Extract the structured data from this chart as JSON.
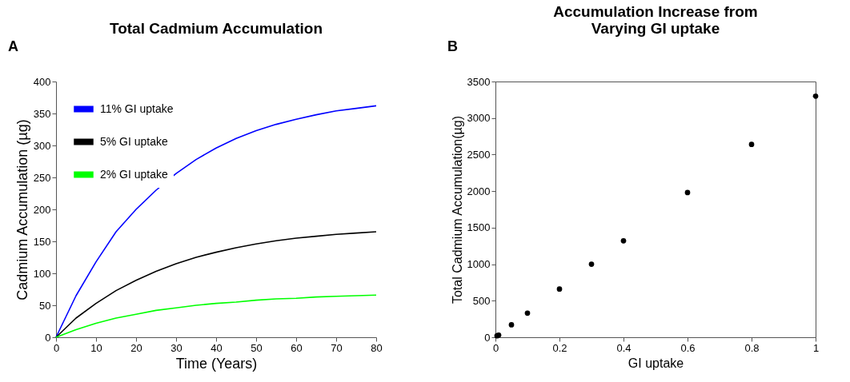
{
  "chart_data": [
    {
      "type": "line",
      "title": "Total Cadmium Accumulation",
      "xlabel": "Time (Years)",
      "ylabel": "Cadmium Accumulation (µg)",
      "annotations": [
        "A"
      ],
      "xlim": [
        0,
        80
      ],
      "ylim": [
        0,
        400
      ],
      "xticks": [
        0,
        10,
        20,
        30,
        40,
        50,
        60,
        70,
        80
      ],
      "yticks": [
        0,
        50,
        100,
        150,
        200,
        250,
        300,
        350,
        400
      ],
      "grid": false,
      "legend": "top left",
      "marker": "none",
      "line_style": "solid",
      "x": [
        0,
        5,
        10,
        15,
        20,
        25,
        30,
        35,
        40,
        45,
        50,
        55,
        60,
        65,
        70,
        75,
        80
      ],
      "series": [
        {
          "name": "11% GI uptake",
          "color": "#0000ff",
          "values": [
            0,
            65,
            118,
            165,
            200,
            230,
            256,
            278,
            296,
            311,
            323,
            333,
            341,
            348,
            354,
            358,
            362
          ]
        },
        {
          "name": "5% GI uptake",
          "color": "#000000",
          "values": [
            0,
            30,
            53,
            73,
            89,
            103,
            115,
            125,
            133,
            140,
            146,
            151,
            155,
            158,
            161,
            163,
            165
          ]
        },
        {
          "name": "2% GI uptake",
          "color": "#00ff00",
          "values": [
            0,
            12,
            22,
            30,
            36,
            42,
            46,
            50,
            53,
            55,
            58,
            60,
            61,
            63,
            64,
            65,
            66
          ]
        }
      ]
    },
    {
      "type": "scatter",
      "title": "Accumulation Increase from Varying GI uptake",
      "xlabel": "GI uptake",
      "ylabel": "Total Cadmium Accumulation(µg)",
      "annotations": [
        "B"
      ],
      "xlim": [
        0,
        1
      ],
      "ylim": [
        0,
        3500
      ],
      "xticks": [
        0,
        0.2,
        0.4,
        0.6,
        0.8,
        1
      ],
      "yticks": [
        0,
        500,
        1000,
        1500,
        2000,
        2500,
        3000,
        3500
      ],
      "grid": false,
      "marker": "circle",
      "x": [
        0.005,
        0.01,
        0.05,
        0.1,
        0.2,
        0.3,
        0.4,
        0.6,
        0.8,
        1.0
      ],
      "color": "#000000",
      "values": [
        20,
        30,
        170,
        330,
        660,
        1000,
        1320,
        1980,
        2640,
        3300
      ]
    }
  ]
}
